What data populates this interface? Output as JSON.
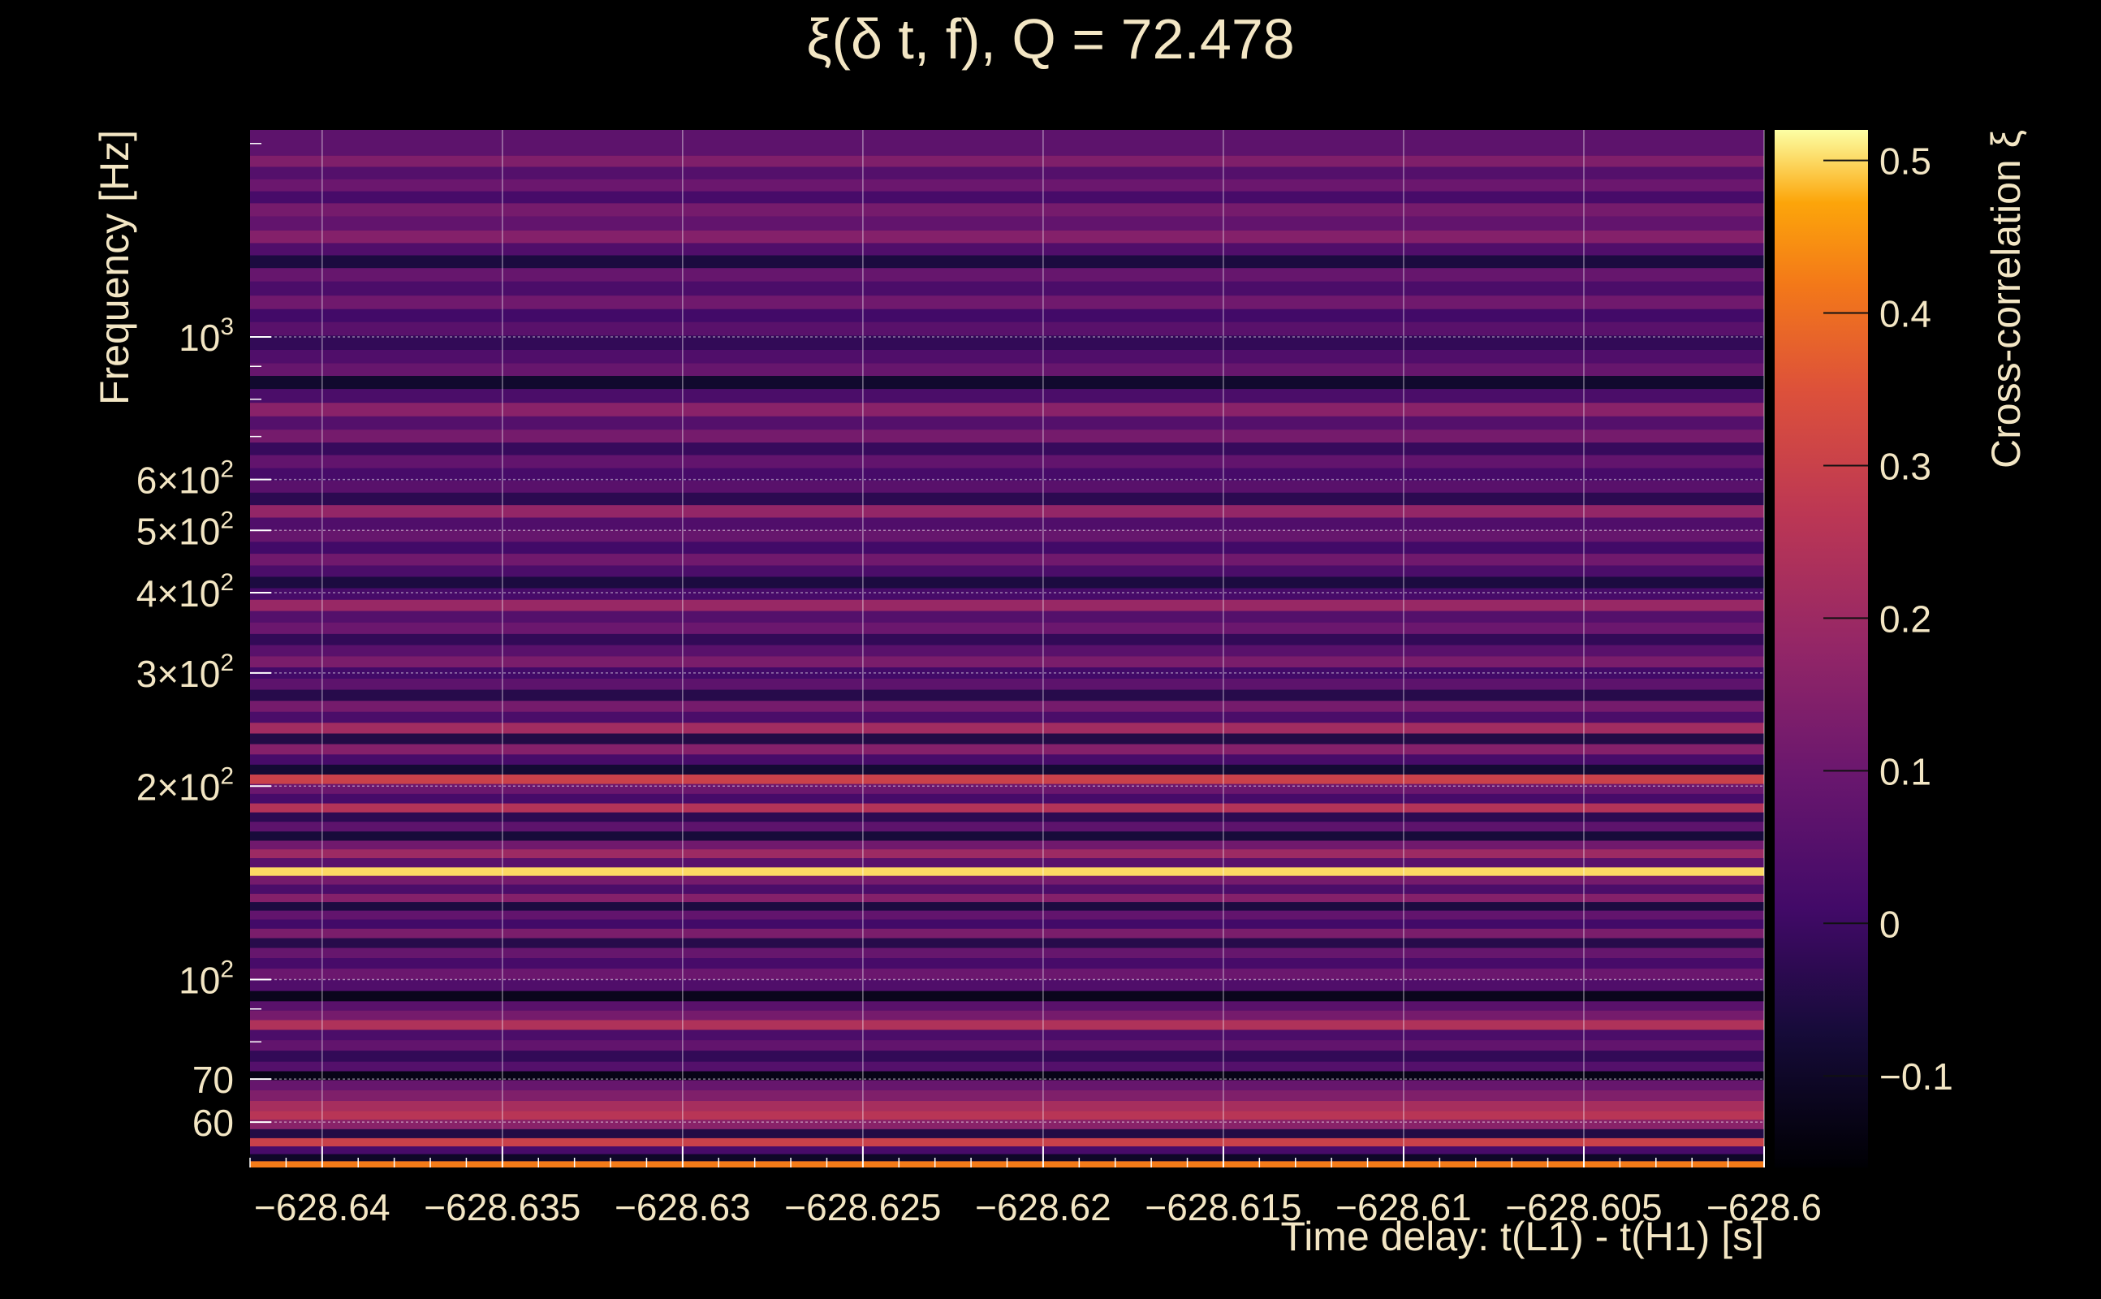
{
  "chart_data": {
    "type": "heatmap",
    "title": "ξ(δ t, f), Q = 72.478",
    "xlabel": "Time delay: t(L1) - t(H1) [s]",
    "ylabel": "Frequency [Hz]",
    "colorbar_label": "Cross-correlation ξ",
    "xlim": [
      -628.642,
      -628.6
    ],
    "ylim": [
      51,
      2100
    ],
    "yscale": "log",
    "clim": [
      -0.16,
      0.52
    ],
    "colormap": "inferno",
    "grid": true,
    "x_ticks": [
      {
        "value": -628.64,
        "label": "−628.64"
      },
      {
        "value": -628.635,
        "label": "−628.635"
      },
      {
        "value": -628.63,
        "label": "−628.63"
      },
      {
        "value": -628.625,
        "label": "−628.625"
      },
      {
        "value": -628.62,
        "label": "−628.62"
      },
      {
        "value": -628.615,
        "label": "−628.615"
      },
      {
        "value": -628.61,
        "label": "−628.61"
      },
      {
        "value": -628.605,
        "label": "−628.605"
      },
      {
        "value": -628.6,
        "label": "−628.6"
      }
    ],
    "y_ticks": [
      {
        "value": 60,
        "label": "60"
      },
      {
        "value": 70,
        "label": "70"
      },
      {
        "value": 100,
        "label": "10",
        "exp": "2"
      },
      {
        "value": 200,
        "label": "2×10",
        "exp": "2"
      },
      {
        "value": 300,
        "label": "3×10",
        "exp": "2"
      },
      {
        "value": 400,
        "label": "4×10",
        "exp": "2"
      },
      {
        "value": 500,
        "label": "5×10",
        "exp": "2"
      },
      {
        "value": 600,
        "label": "6×10",
        "exp": "2"
      },
      {
        "value": 1000,
        "label": "10",
        "exp": "3"
      }
    ],
    "colorbar_ticks": [
      {
        "value": -0.1,
        "label": "−0.1"
      },
      {
        "value": 0,
        "label": "0"
      },
      {
        "value": 0.1,
        "label": "0.1"
      },
      {
        "value": 0.2,
        "label": "0.2"
      },
      {
        "value": 0.3,
        "label": "0.3"
      },
      {
        "value": 0.4,
        "label": "0.4"
      },
      {
        "value": 0.5,
        "label": "0.5"
      }
    ],
    "bands": [
      {
        "f": 1950,
        "v": 0.07
      },
      {
        "f": 1880,
        "v": 0.14
      },
      {
        "f": 1800,
        "v": 0.05
      },
      {
        "f": 1720,
        "v": 0.1
      },
      {
        "f": 1650,
        "v": 0.02
      },
      {
        "f": 1580,
        "v": 0.12
      },
      {
        "f": 1500,
        "v": 0.08
      },
      {
        "f": 1430,
        "v": 0.15
      },
      {
        "f": 1370,
        "v": 0.04
      },
      {
        "f": 1310,
        "v": -0.06
      },
      {
        "f": 1250,
        "v": 0.09
      },
      {
        "f": 1190,
        "v": 0.03
      },
      {
        "f": 1130,
        "v": 0.11
      },
      {
        "f": 1080,
        "v": 0.01
      },
      {
        "f": 1030,
        "v": 0.06
      },
      {
        "f": 980,
        "v": -0.02
      },
      {
        "f": 930,
        "v": 0.04
      },
      {
        "f": 890,
        "v": 0.09
      },
      {
        "f": 850,
        "v": -0.09
      },
      {
        "f": 810,
        "v": 0.03
      },
      {
        "f": 770,
        "v": 0.16
      },
      {
        "f": 735,
        "v": 0.05
      },
      {
        "f": 700,
        "v": 0.12
      },
      {
        "f": 670,
        "v": -0.01
      },
      {
        "f": 640,
        "v": 0.08
      },
      {
        "f": 610,
        "v": 0.02
      },
      {
        "f": 585,
        "v": 0.06
      },
      {
        "f": 560,
        "v": -0.03
      },
      {
        "f": 535,
        "v": 0.18
      },
      {
        "f": 512,
        "v": 0.04
      },
      {
        "f": 490,
        "v": 0.09
      },
      {
        "f": 470,
        "v": 0.01
      },
      {
        "f": 450,
        "v": 0.11
      },
      {
        "f": 432,
        "v": 0.03
      },
      {
        "f": 415,
        "v": -0.06
      },
      {
        "f": 398,
        "v": 0.02
      },
      {
        "f": 382,
        "v": 0.19
      },
      {
        "f": 367,
        "v": 0.05
      },
      {
        "f": 352,
        "v": 0.1
      },
      {
        "f": 338,
        "v": -0.02
      },
      {
        "f": 325,
        "v": 0.06
      },
      {
        "f": 312,
        "v": 0.13
      },
      {
        "f": 300,
        "v": 0.01
      },
      {
        "f": 288,
        "v": 0.07
      },
      {
        "f": 277,
        "v": -0.04
      },
      {
        "f": 266,
        "v": 0.12
      },
      {
        "f": 256,
        "v": 0.03
      },
      {
        "f": 246,
        "v": 0.21
      },
      {
        "f": 237,
        "v": -0.05
      },
      {
        "f": 228,
        "v": 0.15
      },
      {
        "f": 220,
        "v": 0.02
      },
      {
        "f": 212,
        "v": -0.08
      },
      {
        "f": 205,
        "v": 0.3
      },
      {
        "f": 198,
        "v": 0.1
      },
      {
        "f": 191,
        "v": 0.02
      },
      {
        "f": 185,
        "v": 0.25
      },
      {
        "f": 179,
        "v": -0.03
      },
      {
        "f": 173,
        "v": 0.07
      },
      {
        "f": 167,
        "v": -0.07
      },
      {
        "f": 162,
        "v": 0.11
      },
      {
        "f": 157,
        "v": 0.2
      },
      {
        "f": 152,
        "v": 0.06
      },
      {
        "f": 147,
        "v": 0.5
      },
      {
        "f": 143,
        "v": 0.12
      },
      {
        "f": 138,
        "v": 0.03
      },
      {
        "f": 134,
        "v": 0.15
      },
      {
        "f": 130,
        "v": -0.06
      },
      {
        "f": 126,
        "v": 0.08
      },
      {
        "f": 122,
        "v": 0.01
      },
      {
        "f": 118,
        "v": 0.13
      },
      {
        "f": 114,
        "v": -0.04
      },
      {
        "f": 110,
        "v": 0.09
      },
      {
        "f": 106,
        "v": 0.02
      },
      {
        "f": 102,
        "v": 0.1
      },
      {
        "f": 98,
        "v": 0.04
      },
      {
        "f": 94,
        "v": -0.12
      },
      {
        "f": 91,
        "v": 0.06
      },
      {
        "f": 88,
        "v": 0.12
      },
      {
        "f": 85,
        "v": 0.24
      },
      {
        "f": 82,
        "v": 0.03
      },
      {
        "f": 79,
        "v": 0.08
      },
      {
        "f": 76,
        "v": -0.02
      },
      {
        "f": 73,
        "v": 0.05
      },
      {
        "f": 71,
        "v": -0.13
      },
      {
        "f": 68.5,
        "v": 0.09
      },
      {
        "f": 66,
        "v": 0.14
      },
      {
        "f": 63.5,
        "v": 0.22
      },
      {
        "f": 61.5,
        "v": 0.26
      },
      {
        "f": 59.5,
        "v": 0.16
      },
      {
        "f": 57.5,
        "v": -0.05
      },
      {
        "f": 55.8,
        "v": 0.3
      },
      {
        "f": 54.2,
        "v": 0.02
      },
      {
        "f": 52.8,
        "v": -0.1
      },
      {
        "f": 51.5,
        "v": 0.42
      }
    ]
  }
}
